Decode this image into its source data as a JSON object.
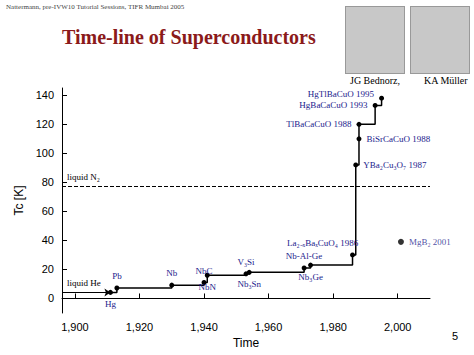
{
  "page": {
    "header": "Nattermann, pre-IVW10 Tutorial Sessions, TIFR Mumbai 2005",
    "title": "Time-line of Superconductors",
    "photo_captions": [
      "JG Bednorz,",
      "KA Müller"
    ],
    "page_number": "5"
  },
  "chart_data": {
    "type": "line",
    "x_label": "Time",
    "y_label": "Tc [K]",
    "x": [
      1911,
      1913,
      1930,
      1940,
      1941,
      1953,
      1954,
      1971,
      1973,
      1986,
      1987,
      1988,
      1988,
      1993,
      1995
    ],
    "values": [
      4.2,
      7.2,
      9.2,
      11,
      16,
      17,
      18,
      21,
      23,
      30,
      92,
      110,
      120,
      133,
      138
    ],
    "point_labels": [
      "Hg",
      "Pb",
      "Nb",
      "NbC",
      "NbN",
      "V₃Si",
      "Nb₃Sn",
      "Nb-Al-Ge",
      "Nb₃Ge",
      "La₂₋ₓBaₓCuO₄ 1986",
      "YBa₂Cu₃O₇ 1987",
      "BiSrCaCuO 1988",
      "TlBaCaCuO 1988",
      "HgBaCaCuO 1993",
      "HgTlBaCuO 1995"
    ],
    "color": "#000000",
    "marker": "circle",
    "line_style": "step",
    "extra_points": [
      {
        "x": 2001,
        "y": 39,
        "label": "MgB₂ 2001"
      }
    ],
    "reference_lines": [
      {
        "y": 4.2,
        "label": "liquid He",
        "line_style": "solid"
      },
      {
        "y": 77,
        "label": "liquid N₂",
        "line_style": "dashed"
      }
    ],
    "xlim": [
      1896,
      2010
    ],
    "xticks": [
      1900,
      1920,
      1940,
      1960,
      1980,
      2000
    ],
    "ylim": [
      -10,
      145
    ],
    "yticks": [
      0,
      20,
      40,
      60,
      80,
      100,
      120,
      140
    ],
    "grid": false
  }
}
